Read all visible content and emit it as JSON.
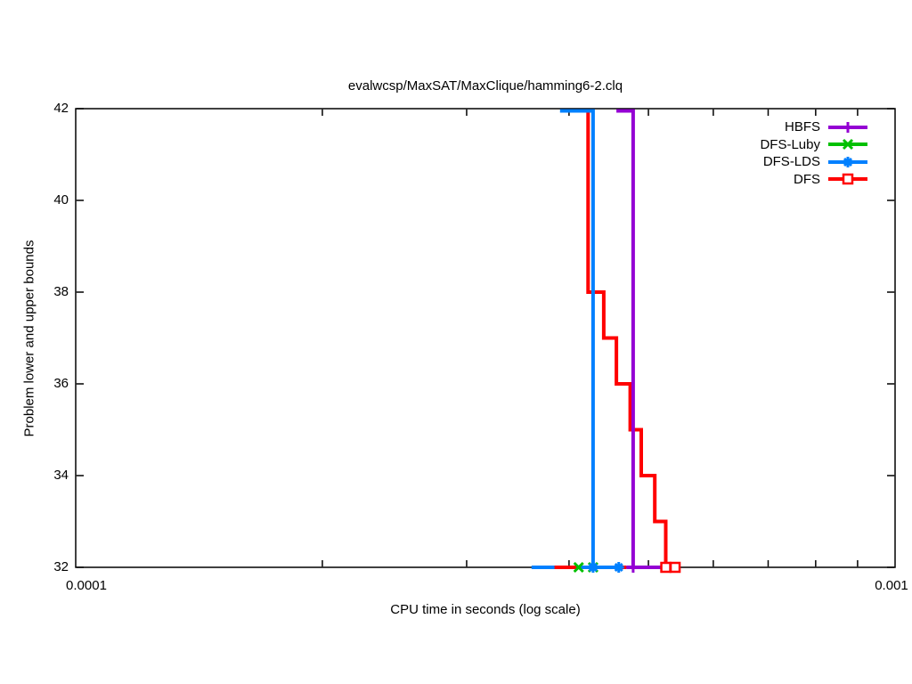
{
  "chart": {
    "title": "evalwcsp/MaxSAT/MaxClique/hamming6-2.clq",
    "xlabel": "CPU time in seconds (log scale)",
    "ylabel": "Problem lower and upper bounds"
  },
  "axes": {
    "x_scale": "log",
    "x_min": 0.0001,
    "x_max": 0.001,
    "y_min": 32,
    "y_max": 42,
    "x_tick_labels": [
      "0.0001",
      "0.001"
    ],
    "x_minor_ticks": [
      0.0002,
      0.0003,
      0.0004,
      0.0005,
      0.0006,
      0.0007,
      0.0008,
      0.0009
    ],
    "y_ticks": [
      32,
      34,
      36,
      38,
      40,
      42
    ],
    "y_tick_labels": [
      "32",
      "34",
      "36",
      "38",
      "40",
      "42"
    ]
  },
  "legend": {
    "position": "top-right-inside",
    "entries": [
      {
        "label": "HBFS",
        "color": "#9400d3",
        "marker": "plus"
      },
      {
        "label": "DFS-Luby",
        "color": "#00c000",
        "marker": "cross"
      },
      {
        "label": "DFS-LDS",
        "color": "#0080ff",
        "marker": "asterisk"
      },
      {
        "label": "DFS",
        "color": "#ff0000",
        "marker": "square"
      }
    ]
  },
  "chart_data": {
    "type": "line",
    "title": "evalwcsp/MaxSAT/MaxClique/hamming6-2.clq",
    "xlabel": "CPU time in seconds (log scale)",
    "ylabel": "Problem lower and upper bounds",
    "xlim": [
      0.0001,
      0.001
    ],
    "ylim": [
      32,
      42
    ],
    "x_scale": "log",
    "grid": false,
    "series": [
      {
        "name": "DFS",
        "role": "upper-bound",
        "color": "#ff0000",
        "style": "steps",
        "points": [
          [
            0.000422,
            42
          ],
          [
            0.000422,
            38
          ],
          [
            0.000441,
            38
          ],
          [
            0.000441,
            37
          ],
          [
            0.000457,
            37
          ],
          [
            0.000457,
            36
          ],
          [
            0.000475,
            36
          ],
          [
            0.000475,
            35
          ],
          [
            0.00049,
            35
          ],
          [
            0.00049,
            34
          ],
          [
            0.000509,
            34
          ],
          [
            0.000509,
            33
          ],
          [
            0.000525,
            33
          ],
          [
            0.000525,
            32
          ],
          [
            0.000544,
            32
          ]
        ],
        "markers": []
      },
      {
        "name": "HBFS",
        "role": "upper-bound",
        "color": "#9400d3",
        "style": "steps",
        "points": [
          [
            0.000457,
            42
          ],
          [
            0.000479,
            42
          ],
          [
            0.000479,
            32
          ]
        ],
        "markers": [
          [
            0.000479,
            32
          ]
        ]
      },
      {
        "name": "DFS-LDS",
        "role": "upper-bound",
        "color": "#0080ff",
        "style": "steps",
        "points": [
          [
            0.00039,
            42
          ],
          [
            0.000428,
            42
          ],
          [
            0.000428,
            32
          ]
        ],
        "markers": []
      },
      {
        "name": "DFS-Luby",
        "role": "lower-bound",
        "color": "#00c000",
        "style": "line",
        "points": [
          [
            0.000409,
            32
          ],
          [
            0.000428,
            32
          ]
        ],
        "markers": [
          [
            0.000411,
            32
          ],
          [
            0.000428,
            32
          ]
        ]
      },
      {
        "name": "DFS-LDS",
        "role": "lower-bound",
        "color": "#0080ff",
        "style": "line",
        "points": [
          [
            0.00036,
            32
          ],
          [
            0.00046,
            32
          ]
        ],
        "markers": [
          [
            0.000428,
            32
          ],
          [
            0.00046,
            32
          ]
        ]
      },
      {
        "name": "DFS",
        "role": "lower-bound-segment-1",
        "color": "#ff0000",
        "style": "line",
        "points": [
          [
            0.000384,
            32
          ],
          [
            0.000409,
            32
          ]
        ],
        "markers": []
      },
      {
        "name": "DFS",
        "role": "lower-bound-segment-2",
        "color": "#ff0000",
        "style": "line",
        "points": [
          [
            0.000461,
            32
          ],
          [
            0.00047,
            32
          ]
        ],
        "markers": []
      },
      {
        "name": "HBFS",
        "role": "lower-bound",
        "color": "#9400d3",
        "style": "line",
        "points": [
          [
            0.00047,
            32
          ],
          [
            0.000522,
            32
          ]
        ],
        "markers": []
      },
      {
        "name": "DFS",
        "role": "lower-bound-segment-3",
        "color": "#ff0000",
        "style": "line",
        "points": [
          [
            0.000522,
            32
          ],
          [
            0.000544,
            32
          ]
        ],
        "markers": [
          [
            0.000525,
            32
          ],
          [
            0.000539,
            32
          ]
        ]
      }
    ]
  }
}
